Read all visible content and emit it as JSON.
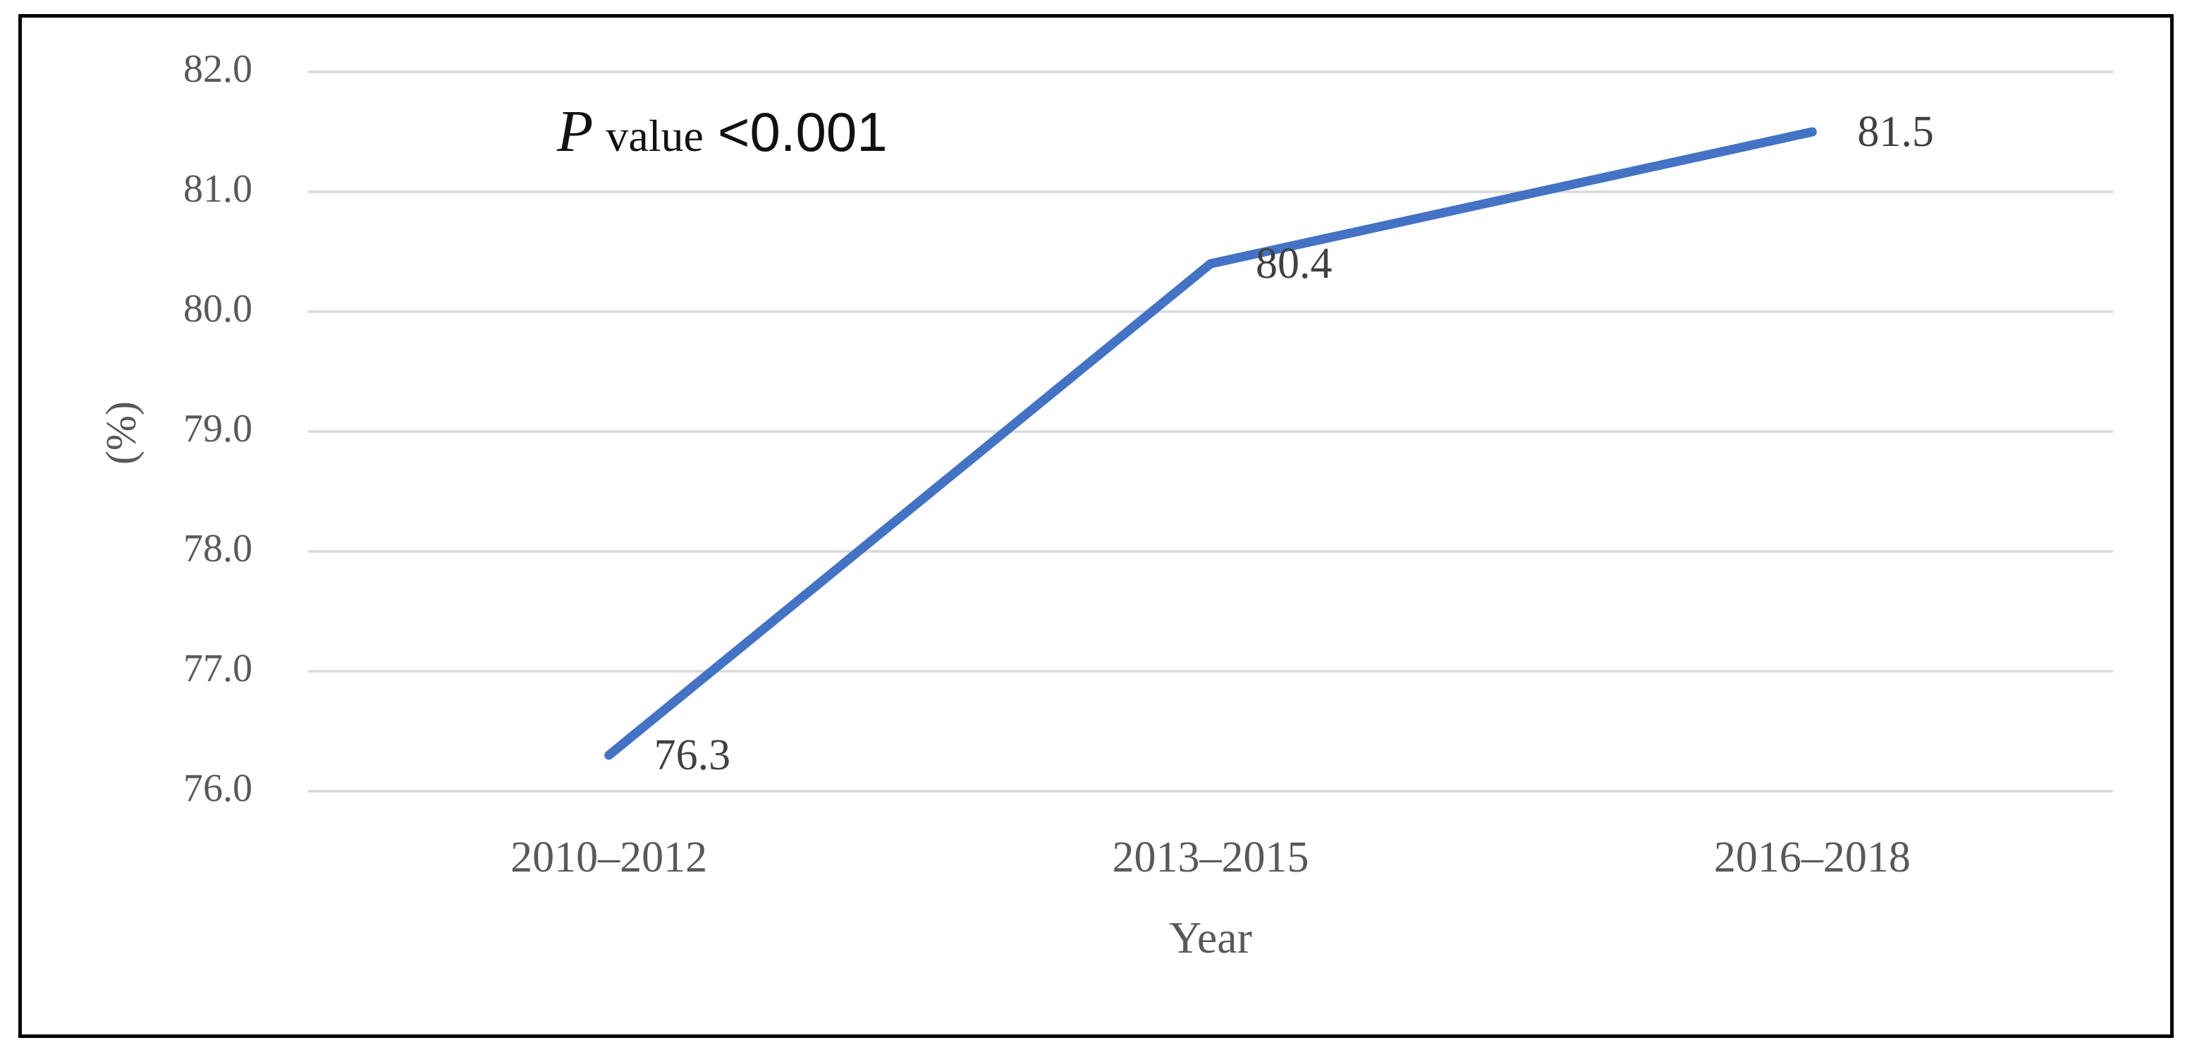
{
  "chart_data": {
    "type": "line",
    "categories": [
      "2010–2012",
      "2013–2015",
      "2016–2018"
    ],
    "series": [
      {
        "name": "percentage",
        "values": [
          76.3,
          80.4,
          81.5
        ]
      }
    ],
    "data_labels": [
      "76.3",
      "80.4",
      "81.5"
    ],
    "title": "",
    "xlabel": "Year",
    "ylabel": "(%)",
    "ylim": [
      76.0,
      82.0
    ],
    "ytick_step": 1.0,
    "ytick_labels": [
      "82.0",
      "81.0",
      "80.0",
      "79.0",
      "78.0",
      "77.0",
      "76.0"
    ],
    "grid": "horizontal",
    "legend": "none",
    "annotation": {
      "p": "P",
      "word": "value",
      "threshold": "<0.001",
      "full_text": "P value <0.001"
    },
    "colors": {
      "line": "#4472C4",
      "gridline": "#D9D9D9",
      "axis_text": "#595959",
      "data_label_text": "#404040",
      "annotation_text": "#111111",
      "frame_border": "#000000",
      "background": "#FFFFFF"
    }
  }
}
